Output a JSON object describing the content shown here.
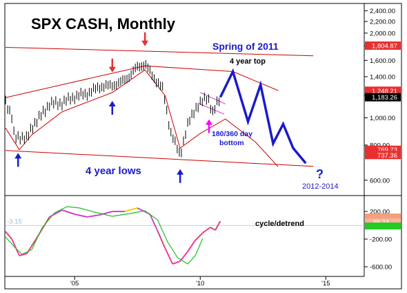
{
  "chart_data": [
    {
      "type": "line",
      "title": "SPX CASH, Monthly",
      "y_scale": "log",
      "ylim": [
        560,
        2450
      ],
      "x_ticks": [
        "'05",
        "'10",
        "'15"
      ],
      "y_ticks": [
        "2,400.00",
        "2,200.00",
        "2,000.00",
        "1,800.00",
        "1,600.00",
        "1,400.00",
        "1,200.00",
        "1,000.00",
        "800.00",
        "600.00"
      ],
      "price_badges": [
        {
          "label": "1,804.87",
          "value": 1804.87,
          "color": "#e83030"
        },
        {
          "label": "1,248.21",
          "value": 1248.21,
          "color": "#e83030"
        },
        {
          "label": "1,183.26",
          "value": 1183.26,
          "color": "#000000"
        },
        {
          "label": "769.73",
          "value": 769.73,
          "color": "#e83030"
        },
        {
          "label": "737.36",
          "value": 737.36,
          "color": "#e83030"
        }
      ],
      "annotations": [
        {
          "text": "Spring of 2011",
          "color": "#1a1acc"
        },
        {
          "text": "4 year top",
          "color": "#000000"
        },
        {
          "text": "180/360 day",
          "color": "#1a1acc"
        },
        {
          "text": "bottom",
          "color": "#1a1acc"
        },
        {
          "text": "4 year lows",
          "color": "#1a1acc"
        },
        {
          "text": "?",
          "color": "#1a1acc"
        },
        {
          "text": "2012-2014",
          "color": "#1a1acc"
        }
      ],
      "series": [
        {
          "name": "",
          "x": [
            2002.25,
            2002.5,
            2002.6,
            2002.8,
            2003.1,
            2003.3,
            2003.6,
            2004,
            2004.5,
            2005,
            2005.5,
            2006,
            2006.4,
            2006.8,
            2007.2,
            2007.5,
            2007.8,
            2008.2,
            2008.5,
            2008.8,
            2009.0,
            2009.2,
            2009.5,
            2009.8,
            2010.3,
            2010.5,
            2010.8
          ],
          "y": [
            1150,
            1000,
            850,
            860,
            840,
            930,
            1000,
            1120,
            1130,
            1190,
            1220,
            1290,
            1300,
            1330,
            1410,
            1520,
            1550,
            1370,
            1270,
            900,
            810,
            735,
            940,
            1080,
            1190,
            1040,
            1183
          ]
        },
        {
          "name": "",
          "x": [
            2010.8,
            2011.3,
            2011.9,
            2012.4,
            2012.9,
            2013.3,
            2013.7,
            2014.2
          ],
          "y": [
            1183,
            1460,
            970,
            1310,
            810,
            950,
            780,
            690
          ]
        }
      ],
      "trendlines": [
        {
          "x": [
            2002.25,
            2007.8,
            2011.3,
            2013.1
          ],
          "y": [
            1180,
            1530,
            1460,
            1250
          ]
        },
        {
          "x": [
            2002.25,
            2002.8,
            2003.3,
            2004.5,
            2006.5,
            2007.8,
            2008.6,
            2009.2,
            2010.0,
            2011.0,
            2012.2,
            2013.1
          ],
          "y": [
            920,
            770,
            870,
            1050,
            1230,
            1480,
            1200,
            780,
            880,
            990,
            820,
            670
          ]
        },
        {
          "x": [
            2002.25,
            2014.5
          ],
          "y": [
            1780,
            1660
          ]
        },
        {
          "x": [
            2002.25,
            2014.5
          ],
          "y": [
            765,
            672
          ]
        },
        {
          "x": [
            2010.0,
            2011.0
          ],
          "y": [
            1230,
            1120
          ]
        },
        {
          "x": [
            2009.9,
            2010.95
          ],
          "y": [
            1130,
            1030
          ]
        }
      ],
      "arrows": [
        {
          "x": 2002.75,
          "y": 725,
          "direction": "up",
          "color": "#1a1acc"
        },
        {
          "x": 2006.5,
          "y": 1110,
          "direction": "up",
          "color": "#1a1acc"
        },
        {
          "x": 2009.2,
          "y": 635,
          "direction": "up",
          "color": "#1a1acc"
        },
        {
          "x": 2010.35,
          "y": 955,
          "direction": "up",
          "color": "#ff00ff"
        },
        {
          "x": 2006.5,
          "y": 1500,
          "direction": "down",
          "color": "#e83030"
        },
        {
          "x": 2007.8,
          "y": 1860,
          "direction": "down",
          "color": "#e83030"
        }
      ]
    },
    {
      "type": "line",
      "title": "",
      "ylim": [
        -720,
        340
      ],
      "y_ticks": [
        "200.00",
        "-200.00",
        "-600.00"
      ],
      "reference_value_label": "-3.15",
      "price_badges": [
        {
          "label": "",
          "value": 120,
          "color": "#f4a07a"
        },
        {
          "label": "49.24",
          "value": 49.24,
          "color": "#ffb0a0"
        },
        {
          "label": "",
          "value": -10,
          "color": "#22cc22"
        }
      ],
      "annotations": [
        {
          "text": "cycle/detrend",
          "color": "#000000"
        }
      ],
      "series": [
        {
          "name": "",
          "x": [
            2002.25,
            2002.5,
            2002.8,
            2003.1,
            2003.5,
            2004.0,
            2004.5,
            2005.0,
            2005.5,
            2006.0,
            2006.5,
            2007.0,
            2007.5,
            2008.0,
            2008.3,
            2008.6,
            2008.9,
            2009.2,
            2009.5,
            2009.8,
            2010.1,
            2010.4,
            2010.6,
            2010.8
          ],
          "y": [
            -90,
            -200,
            -440,
            -410,
            -180,
            120,
            220,
            160,
            120,
            150,
            200,
            200,
            250,
            160,
            -80,
            -330,
            -560,
            -520,
            -380,
            -220,
            -110,
            -30,
            -70,
            60
          ]
        },
        {
          "name": "",
          "x": [
            2002.25,
            2002.6,
            2002.9,
            2003.3,
            2003.7,
            2004.2,
            2004.7,
            2005.2,
            2005.8,
            2006.5,
            2007.2,
            2007.8,
            2008.3,
            2008.7,
            2009.1,
            2009.5,
            2009.8,
            2010.1
          ],
          "y": [
            -170,
            -310,
            -420,
            -350,
            -40,
            180,
            270,
            250,
            190,
            130,
            170,
            210,
            80,
            -240,
            -470,
            -560,
            -440,
            -190
          ]
        }
      ]
    }
  ]
}
